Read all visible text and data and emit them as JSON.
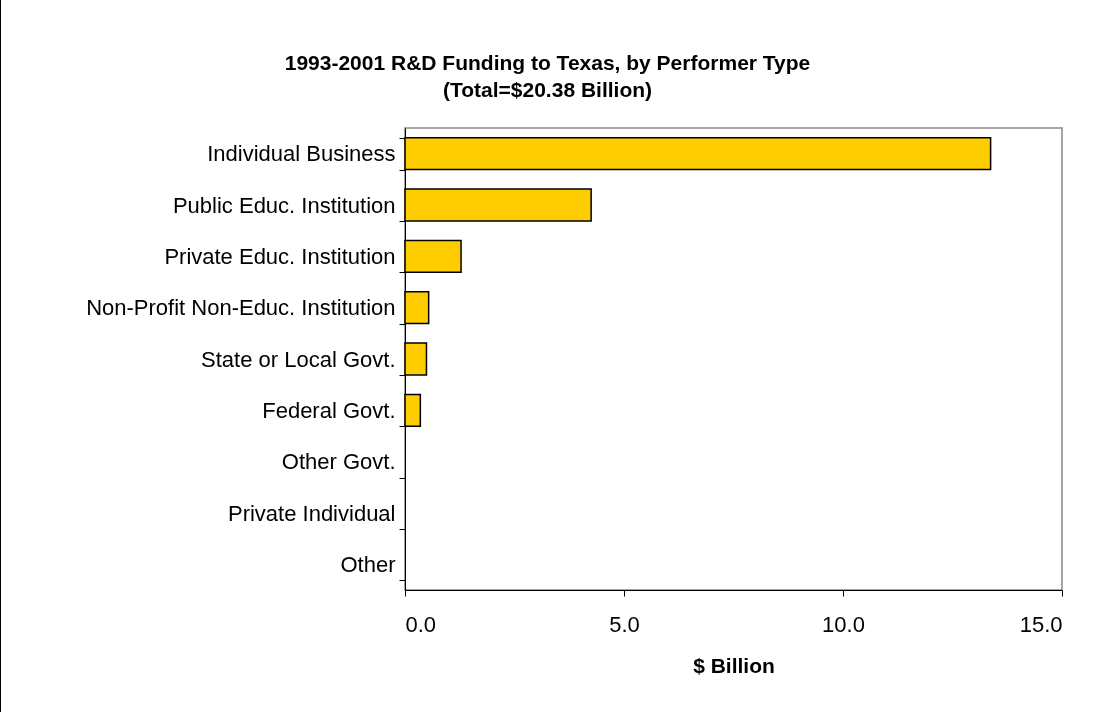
{
  "chart_data": {
    "type": "bar",
    "orientation": "horizontal",
    "title": "1993-2001 R&D Funding to Texas, by Performer Type",
    "subtitle": "(Total=$20.38 Billion)",
    "xlabel": "$ Billion",
    "categories": [
      "Individual Business",
      "Public Educ. Institution",
      "Private Educ. Institution",
      "Non-Profit Non-Educ. Institution",
      "State or Local Govt.",
      "Federal Govt.",
      "Other Govt.",
      "Private Individual",
      "Other"
    ],
    "values": [
      13.37,
      4.25,
      1.28,
      0.54,
      0.49,
      0.35,
      0,
      0,
      0
    ],
    "color": "#ffcc00",
    "xlim": [
      0,
      15
    ],
    "xticks": [
      {
        "value": 0,
        "label": "0.0"
      },
      {
        "value": 5,
        "label": "5.0"
      },
      {
        "value": 10,
        "label": "10.0"
      },
      {
        "value": 15,
        "label": "15.0"
      }
    ],
    "grid": false
  }
}
